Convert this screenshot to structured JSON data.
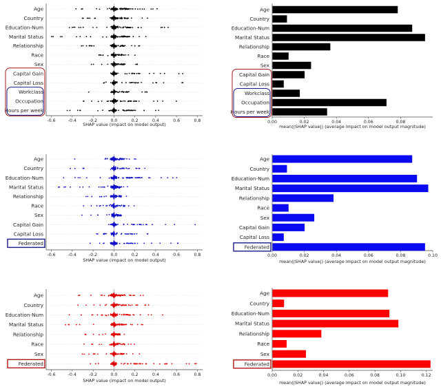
{
  "chart_data": [
    {
      "id": "top-beeswarm",
      "type": "scatter",
      "subtype": "shap-beeswarm",
      "color": "#000000",
      "xlabel": "SHAP value (impact on model output)",
      "xlim": [
        -0.65,
        0.85
      ],
      "xticks": [
        "-0.6",
        "-0.4",
        "-0.2",
        "0.0",
        "0.2",
        "0.4",
        "0.6",
        "0.8"
      ],
      "features": [
        {
          "name": "Age",
          "min": -0.4,
          "max": 0.45,
          "density": 1.0
        },
        {
          "name": "Country",
          "min": -0.32,
          "max": 0.35,
          "density": 0.8
        },
        {
          "name": "Education-Num",
          "min": -0.45,
          "max": 0.55,
          "density": 1.0
        },
        {
          "name": "Marital Status",
          "min": -0.6,
          "max": 0.35,
          "density": 1.0
        },
        {
          "name": "Relationship",
          "min": -0.32,
          "max": 0.3,
          "density": 0.7
        },
        {
          "name": "Race",
          "min": -0.25,
          "max": 0.25,
          "density": 0.6
        },
        {
          "name": "Sex",
          "min": -0.35,
          "max": 0.25,
          "density": 0.7
        },
        {
          "name": "Capital Gain",
          "min": -0.1,
          "max": 0.8,
          "density": 0.8
        },
        {
          "name": "Capital Loss",
          "min": -0.2,
          "max": 0.7,
          "density": 0.6
        },
        {
          "name": "Workclass",
          "min": -0.25,
          "max": 0.4,
          "density": 0.6
        },
        {
          "name": "Occupation",
          "min": -0.35,
          "max": 0.6,
          "density": 0.8
        },
        {
          "name": "Hours per week",
          "min": -0.45,
          "max": 0.5,
          "density": 0.9
        }
      ],
      "highlight": [
        "Capital Gain",
        "Capital Loss",
        "Workclass",
        "Occupation",
        "Hours per week"
      ]
    },
    {
      "id": "top-bar",
      "type": "bar",
      "orientation": "horizontal",
      "color": "#000000",
      "xlabel": "mean(|SHAP value|) (average impact on model output magnitude)",
      "xlim": [
        0,
        0.1
      ],
      "xticks": [
        "0.00",
        "0.02",
        "0.04",
        "0.06",
        "0.08"
      ],
      "categories": [
        "Age",
        "Country",
        "Education-Num",
        "Marital Status",
        "Relationship",
        "Race",
        "Sex",
        "Capital Gain",
        "Capital Loss",
        "Workclass",
        "Occupation",
        "Hours per week"
      ],
      "values": [
        0.078,
        0.009,
        0.087,
        0.095,
        0.036,
        0.01,
        0.024,
        0.02,
        0.007,
        0.017,
        0.071,
        0.034
      ],
      "highlight": [
        "Capital Gain",
        "Capital Loss",
        "Workclass",
        "Occupation",
        "Hours per week"
      ]
    },
    {
      "id": "mid-beeswarm",
      "type": "scatter",
      "subtype": "shap-beeswarm",
      "color": "#1010c8",
      "xlabel": "SHAP value (impact on model output)",
      "xlim": [
        -0.65,
        0.85
      ],
      "xticks": [
        "-0.6",
        "-0.4",
        "-0.2",
        "0.0",
        "0.2",
        "0.4",
        "0.6",
        "0.8"
      ],
      "features": [
        {
          "name": "Age",
          "min": -0.4,
          "max": 0.3,
          "density": 1.0
        },
        {
          "name": "Country",
          "min": -0.45,
          "max": 0.3,
          "density": 0.8
        },
        {
          "name": "Education-Num",
          "min": -0.5,
          "max": 0.7,
          "density": 1.0
        },
        {
          "name": "Marital Status",
          "min": -0.55,
          "max": 0.2,
          "density": 1.0
        },
        {
          "name": "Relationship",
          "min": -0.35,
          "max": 0.2,
          "density": 0.7
        },
        {
          "name": "Race",
          "min": -0.3,
          "max": 0.3,
          "density": 0.6
        },
        {
          "name": "Sex",
          "min": -0.32,
          "max": 0.2,
          "density": 0.7
        },
        {
          "name": "Capital Gain",
          "min": -0.1,
          "max": 0.8,
          "density": 0.8
        },
        {
          "name": "Capital Loss",
          "min": -0.25,
          "max": 0.55,
          "density": 0.6
        },
        {
          "name": "Federated",
          "min": -0.35,
          "max": 0.62,
          "density": 1.0
        }
      ],
      "highlight": [
        "Federated"
      ]
    },
    {
      "id": "mid-bar",
      "type": "bar",
      "orientation": "horizontal",
      "color": "#0a0af0",
      "xlabel": "mean(|SHAP value|) (average impact on model output magnitude)",
      "xlim": [
        0,
        0.1
      ],
      "xticks": [
        "0.00",
        "0.02",
        "0.04",
        "0.06",
        "0.08",
        "0.10"
      ],
      "categories": [
        "Age",
        "Country",
        "Education-Num",
        "Marital Status",
        "Relationship",
        "Race",
        "Sex",
        "Capital Gain",
        "Capital Loss",
        "Federated"
      ],
      "values": [
        0.087,
        0.009,
        0.09,
        0.097,
        0.038,
        0.01,
        0.026,
        0.02,
        0.007,
        0.095
      ],
      "highlight": [
        "Federated"
      ]
    },
    {
      "id": "bot-beeswarm",
      "type": "scatter",
      "subtype": "shap-beeswarm",
      "color": "#e00000",
      "xlabel": "SHAP value (impact on model output)",
      "xlim": [
        -0.65,
        0.85
      ],
      "xticks": [
        "-0.6",
        "-0.4",
        "-0.2",
        "0.0",
        "0.2",
        "0.4",
        "0.6",
        "0.8"
      ],
      "features": [
        {
          "name": "Age",
          "min": -0.4,
          "max": 0.28,
          "density": 1.0
        },
        {
          "name": "Country",
          "min": -0.42,
          "max": 0.35,
          "density": 0.8
        },
        {
          "name": "Education-Num",
          "min": -0.45,
          "max": 0.5,
          "density": 1.0
        },
        {
          "name": "Marital Status",
          "min": -0.55,
          "max": 0.3,
          "density": 1.0
        },
        {
          "name": "Relationship",
          "min": -0.3,
          "max": 0.2,
          "density": 0.7
        },
        {
          "name": "Race",
          "min": -0.3,
          "max": 0.3,
          "density": 0.6
        },
        {
          "name": "Sex",
          "min": -0.35,
          "max": 0.28,
          "density": 0.7
        },
        {
          "name": "Federated",
          "min": -0.35,
          "max": 0.82,
          "density": 1.2
        }
      ],
      "highlight": [
        "Federated"
      ]
    },
    {
      "id": "bot-bar",
      "type": "bar",
      "orientation": "horizontal",
      "color": "#ff0000",
      "xlabel": "mean(|SHAP value|) (average impact on model output magnitude)",
      "xlim": [
        0,
        0.125
      ],
      "xticks": [
        "0.00",
        "0.02",
        "0.04",
        "0.06",
        "0.08",
        "0.10",
        "0.12"
      ],
      "categories": [
        "Age",
        "Country",
        "Education-Num",
        "Marital Status",
        "Relationship",
        "Race",
        "Sex",
        "Federated"
      ],
      "values": [
        0.09,
        0.009,
        0.091,
        0.098,
        0.038,
        0.011,
        0.026,
        0.123
      ],
      "highlight": [
        "Federated"
      ]
    }
  ]
}
